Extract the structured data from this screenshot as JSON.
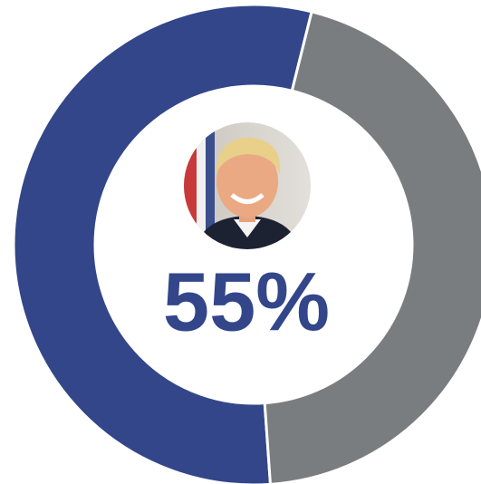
{
  "chart_data": {
    "type": "donut",
    "values": [
      55,
      45
    ],
    "value_labels": [
      "55%",
      null
    ],
    "colors": [
      "#33468a",
      "#7a7d80"
    ]
  }
}
